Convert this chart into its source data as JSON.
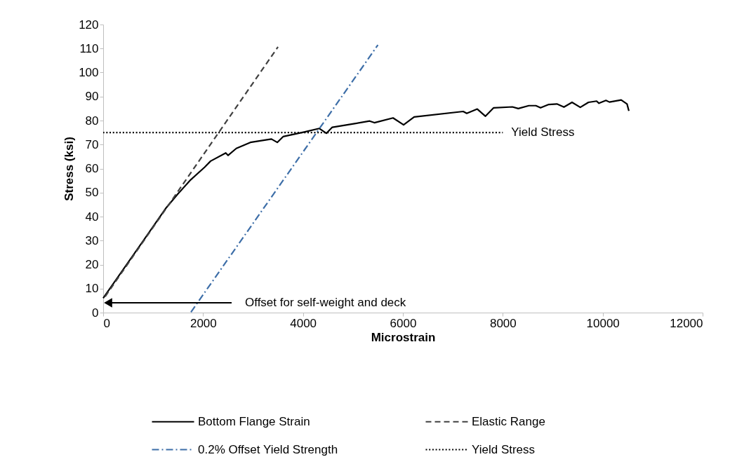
{
  "chart_data": {
    "type": "line",
    "xlabel": "Microstrain",
    "ylabel": "Stress (ksi)",
    "xlim": [
      0,
      12000
    ],
    "xticks": [
      0,
      {
        "value": 2000,
        "label": "2000"
      },
      {
        "value": 4000,
        "label": "4000"
      },
      {
        "value": 6000,
        "label": "6000"
      },
      {
        "value": 8000,
        "label": "8000"
      },
      {
        "value": 10000,
        "label": "10000"
      },
      {
        "value": 12000,
        "label": "12000"
      }
    ],
    "ylim": [
      0,
      120
    ],
    "yticks": [
      0,
      10,
      20,
      30,
      40,
      50,
      60,
      70,
      80,
      90,
      100,
      110,
      120
    ],
    "grid": false,
    "legend": "bottom",
    "marker": "none",
    "series": [
      {
        "name": "Bottom Flange Strain",
        "color": "#000000",
        "line_style": "solid",
        "x": [
          0,
          838,
          1259,
          1494,
          1751,
          2032,
          2150,
          2454,
          2501,
          2665,
          2946,
          3368,
          3485,
          3602,
          4024,
          4328,
          4468,
          4586,
          5054,
          5335,
          5429,
          5803,
          6014,
          6225,
          7208,
          7278,
          7489,
          7653,
          7817,
          8192,
          8310,
          8521,
          8662,
          8756,
          8920,
          9083,
          9224,
          9386,
          9551,
          9715,
          9878,
          9925,
          10065,
          10135,
          10370,
          10487,
          10524
        ],
        "values": [
          6,
          31,
          43.6,
          49.4,
          55.3,
          60.6,
          63.1,
          66.5,
          65.5,
          68.4,
          70.9,
          72.3,
          70.9,
          73.3,
          75.2,
          76.7,
          74.7,
          77.2,
          78.8,
          79.8,
          79.1,
          81.1,
          78.2,
          81.5,
          83.8,
          83,
          84.8,
          81.8,
          85.3,
          85.7,
          85,
          86.2,
          86.2,
          85.3,
          86.7,
          86.9,
          85.6,
          87.6,
          85.5,
          87.6,
          88.1,
          87.2,
          88.4,
          87.7,
          88.6,
          86.9,
          84
        ]
      },
      {
        "name": "Elastic Range",
        "color": "#404040",
        "line_style": "dashed",
        "x": [
          0,
          3500
        ],
        "values": [
          5.5,
          110.7
        ]
      },
      {
        "name": "0.2% Offset Yield Strength",
        "color": "#3d6ea8",
        "line_style": "dashdot",
        "x": [
          1750,
          5500
        ],
        "values": [
          0,
          111.5
        ]
      },
      {
        "name": "Yield Stress",
        "color": "#000000",
        "line_style": "dotted",
        "x": [
          0,
          8000
        ],
        "values": [
          75,
          75
        ]
      }
    ],
    "annotations": [
      "Offset for self-weight and deck",
      {
        "text": "Yield Stress",
        "x": 8000,
        "y": 75
      }
    ]
  }
}
